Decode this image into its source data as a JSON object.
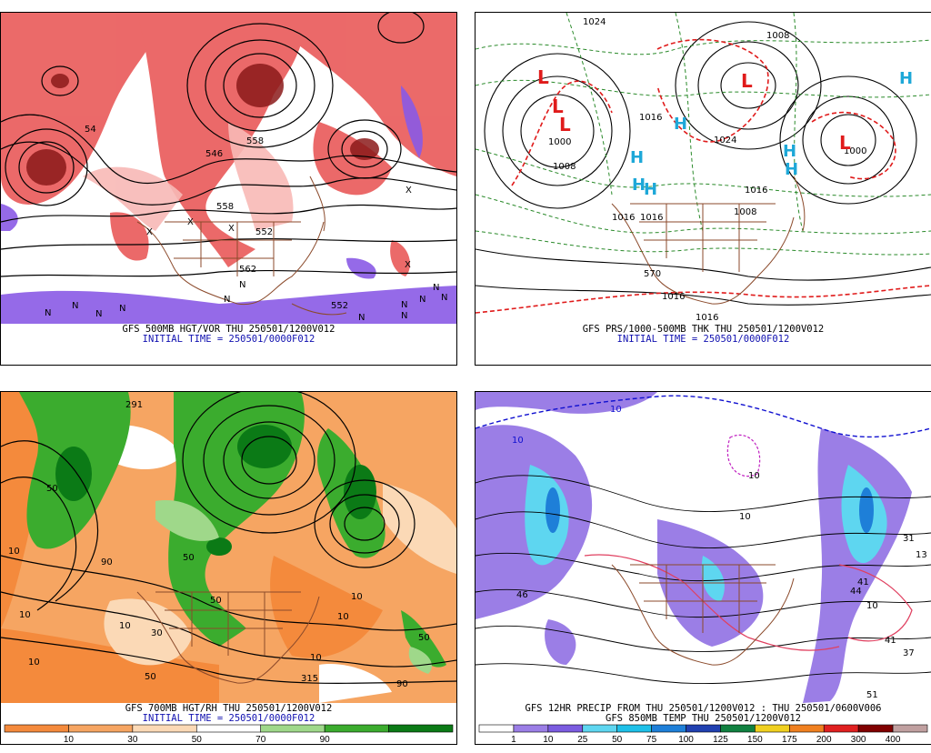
{
  "panels": [
    {
      "id": "hgt-vor",
      "caption": "GFS 500MB HGT/VOR THU 250501/1200V012",
      "initial": "INITIAL TIME = 250501/0000F012",
      "contour_labels": [
        "54",
        "546",
        "558",
        "558",
        "552",
        "562",
        "552"
      ],
      "markers": [
        "N",
        "N",
        "N",
        "N",
        "N",
        "N",
        "N",
        "N",
        "N",
        "N",
        "N",
        "N",
        "X",
        "X",
        "X",
        "X",
        "X"
      ]
    },
    {
      "id": "prs-thk",
      "caption": "GFS PRS/1000-500MB THK THU 250501/1200V012",
      "initial": "INITIAL TIME = 250501/0000F012",
      "contour_labels": [
        "1024",
        "1008",
        "1000",
        "1000",
        "1016",
        "1024",
        "1008",
        "1016",
        "1016",
        "1016",
        "1008",
        "570",
        "1016",
        "1016"
      ],
      "lows": [
        "L",
        "L",
        "L",
        "L",
        "L"
      ],
      "highs": [
        "H",
        "H",
        "H",
        "H",
        "H",
        "H",
        "H"
      ]
    },
    {
      "id": "hgt-rh",
      "caption": "GFS 700MB HGT/RH THU 250501/1200V012",
      "initial": "INITIAL TIME = 250501/0000F012",
      "contour_labels": [
        "291",
        "50",
        "10",
        "10",
        "50",
        "10",
        "10",
        "50",
        "90",
        "10",
        "50",
        "10",
        "30",
        "50",
        "10",
        "90",
        "315"
      ],
      "colorbar": {
        "labels": [
          "10",
          "30",
          "50",
          "70",
          "90"
        ],
        "colors": [
          "#f48a3c",
          "#f6a562",
          "#fbd9b6",
          "#ffffff",
          "#9fd88a",
          "#3bac2e",
          "#0b7a16"
        ]
      }
    },
    {
      "id": "precip-temp",
      "caption": "GFS 12HR PRECIP FROM THU 250501/1200V012 : THU 250501/0600V006",
      "caption2": "GFS 850MB TEMP THU 250501/1200V012",
      "contour_labels": [
        "10",
        "10",
        "10",
        "10",
        "46",
        "44",
        "41",
        "37",
        "31",
        "13",
        "51",
        "41",
        "10"
      ],
      "colorbar": {
        "labels": [
          "1",
          "10",
          "25",
          "50",
          "75",
          "100",
          "125",
          "150",
          "175",
          "200",
          "300",
          "400"
        ],
        "colors": [
          "#ffffff",
          "#9b7ee6",
          "#7b5ce0",
          "#5ed6f0",
          "#1ec0e8",
          "#1e7fd8",
          "#2040b0",
          "#108040",
          "#f0d020",
          "#f08020",
          "#e02020",
          "#800000",
          "#c0a0a0"
        ]
      }
    }
  ]
}
